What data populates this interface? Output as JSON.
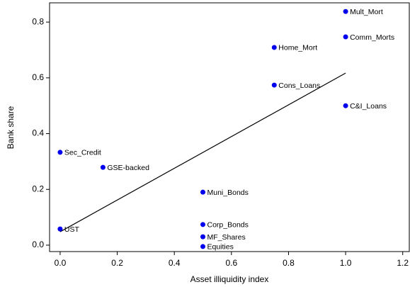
{
  "chart_data": {
    "type": "scatter",
    "x_label": "Asset illiquidity index",
    "y_label": "Bank share",
    "color": "#0000ee",
    "labels": [
      "Mult_Mort",
      "Comm_Morts",
      "Home_Mort",
      "Cons_Loans",
      "C&I_Loans",
      "Sec_Credit",
      "GSE-backed",
      "Muni_Bonds",
      "Corp_Bonds",
      "MF_Shares",
      "Equities",
      "UST"
    ],
    "x": [
      1.0,
      1.0,
      0.75,
      0.75,
      1.0,
      0.0,
      0.15,
      0.5,
      0.5,
      0.5,
      0.5,
      0.0
    ],
    "y": [
      0.838,
      0.747,
      0.709,
      0.574,
      0.5,
      0.333,
      0.279,
      0.19,
      0.074,
      0.03,
      -0.005,
      0.058
    ],
    "fit_line": {
      "x": [
        0,
        1
      ],
      "y": [
        0.048,
        0.617
      ]
    },
    "xlim": [
      -0.037,
      1.223
    ],
    "ylim": [
      -0.023,
      0.869
    ],
    "xticks": [
      {
        "value": 0,
        "label": "0.0"
      },
      0.2,
      0.4,
      0.6,
      0.8,
      {
        "value": 1,
        "label": "1.0"
      },
      1.2
    ],
    "yticks": [
      {
        "value": 0,
        "label": "0.0"
      },
      0.2,
      0.4,
      0.6,
      0.8
    ]
  }
}
